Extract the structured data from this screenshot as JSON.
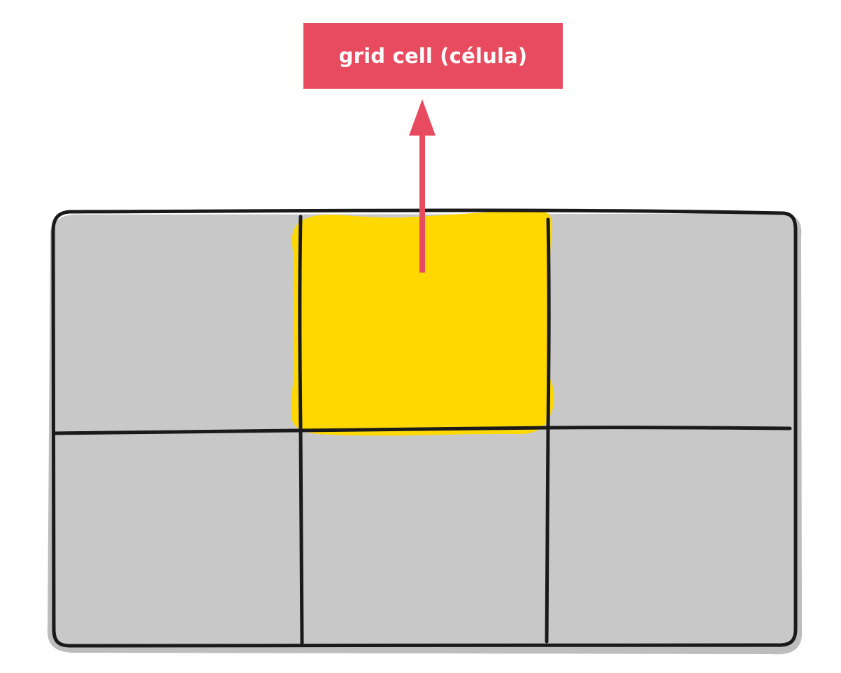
{
  "label": {
    "text": "grid cell (célula)"
  },
  "grid": {
    "rows": 2,
    "columns": 3,
    "highlighted_cell": {
      "row": 1,
      "column": 2
    }
  },
  "colors": {
    "label_background": "#E84B5F",
    "label_text": "#FFFFFF",
    "arrow": "#E84B5F",
    "cell_fill": "#C8C8C8",
    "cell_shadow": "#BDBDBD",
    "highlight_fill": "#FFD800",
    "grid_line": "#1A1A1A"
  }
}
